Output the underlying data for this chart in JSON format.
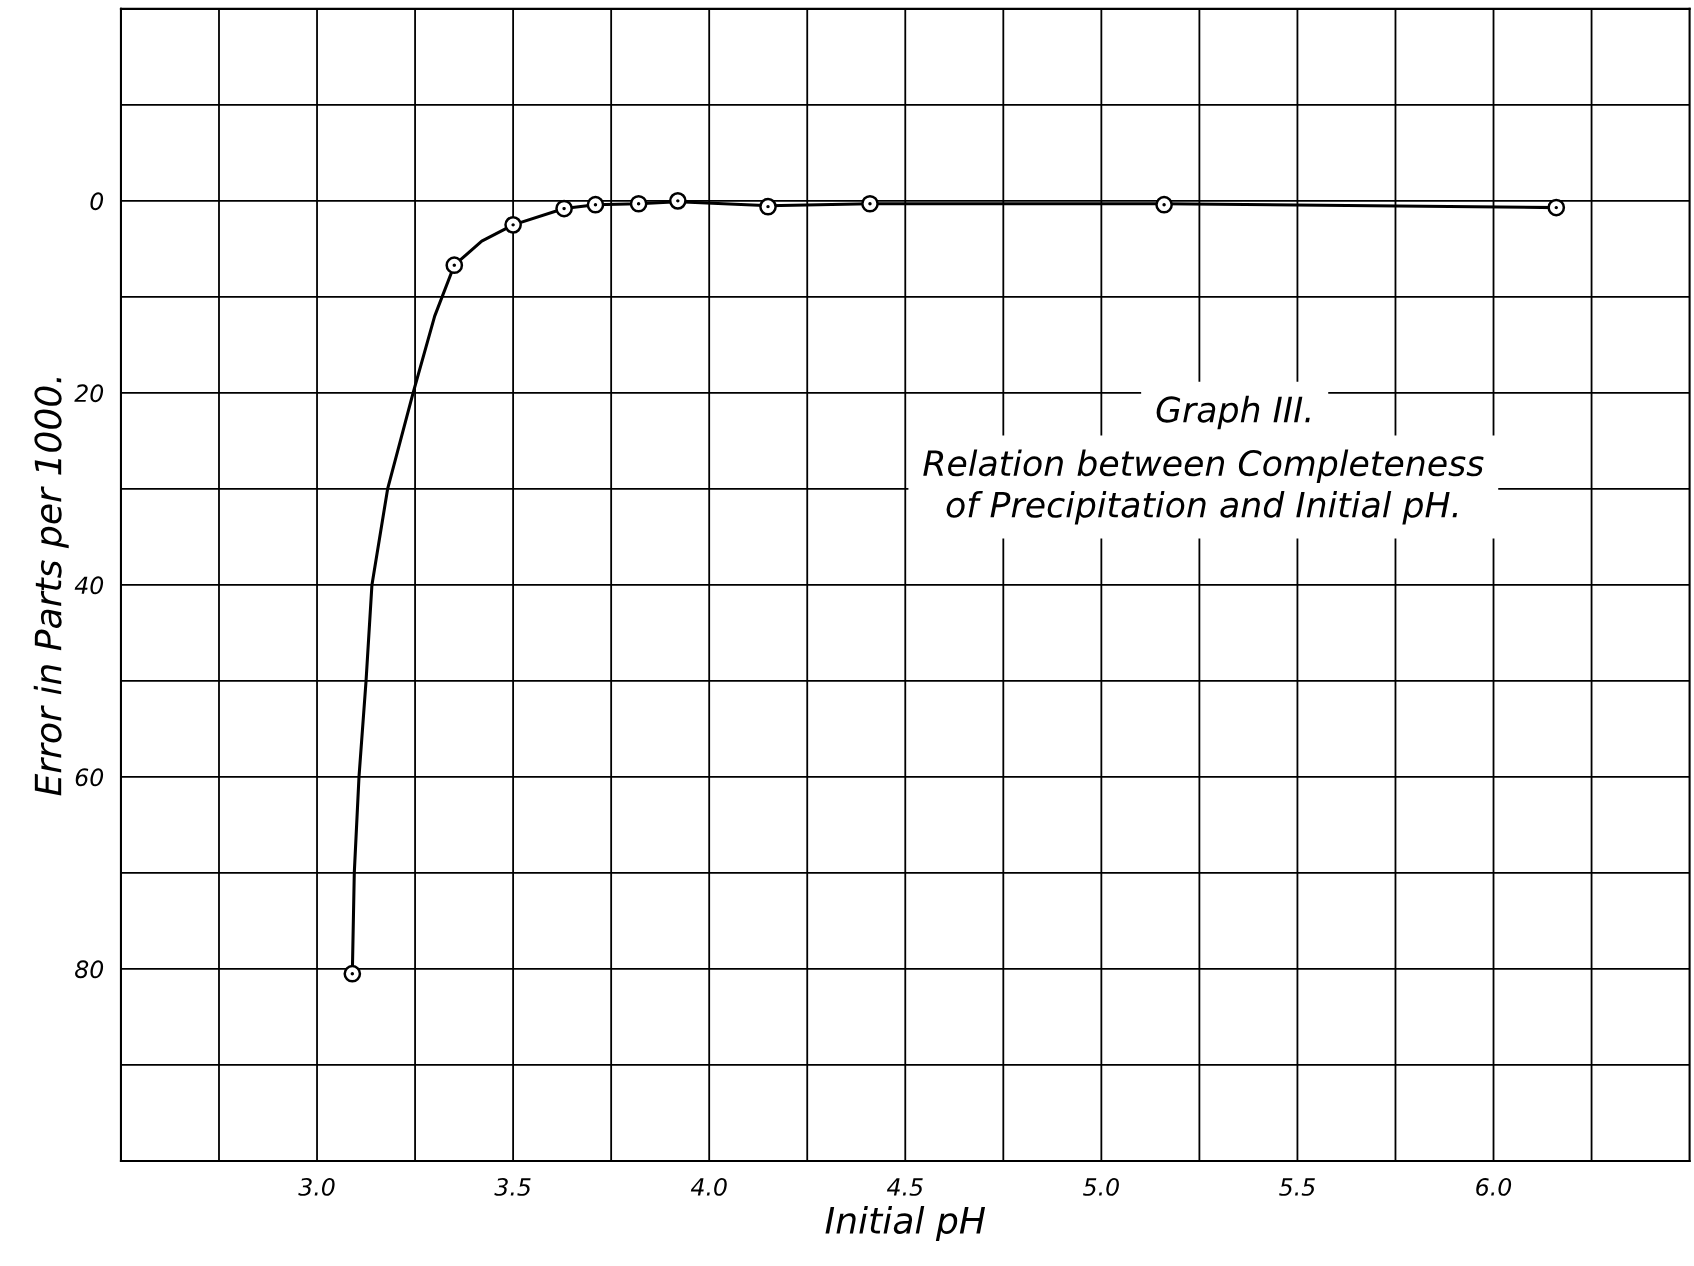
{
  "chart_data": {
    "type": "line",
    "title": "Graph III.",
    "subtitle": "Relation between Completeness\nof Precipitation and Initial pH.",
    "xlabel": "Initial pH",
    "ylabel": "Error in Parts per 1000.",
    "series": [
      {
        "color": "#000000",
        "x": [
          3.09,
          3.095,
          3.107,
          3.125,
          3.14,
          3.18,
          3.245,
          3.3,
          3.35,
          3.42,
          3.5,
          3.63,
          3.71,
          3.82,
          3.92,
          4.15,
          4.41,
          5.16,
          6.16
        ],
        "values": [
          80.5,
          70,
          60,
          50,
          40,
          30,
          20,
          12,
          6.7,
          4.2,
          2.5,
          0.8,
          0.4,
          0.3,
          0.1,
          0.5,
          0.3,
          0.3,
          0.7
        ]
      },
      {
        "type": "scatter",
        "color": "#000000",
        "marker": "circle",
        "x": [
          3.09,
          3.35,
          3.5,
          3.63,
          3.71,
          3.82,
          3.92,
          4.15,
          4.41,
          5.16,
          6.16
        ],
        "values": [
          80.5,
          6.7,
          2.5,
          0.8,
          0.4,
          0.3,
          0,
          0.6,
          0.3,
          0.4,
          0.7
        ]
      }
    ],
    "xlim": [
      2.5,
      6.5
    ],
    "ylim": [
      100,
      -20
    ],
    "xticks": [
      {
        "value": 2.75,
        "label": null
      },
      {
        "value": 3.0,
        "label": "3.0"
      },
      {
        "value": 3.25,
        "label": null
      },
      3.5,
      {
        "value": 3.75,
        "label": null
      },
      {
        "value": 4.0,
        "label": "4.0"
      },
      {
        "value": 4.25,
        "label": null
      },
      4.5,
      {
        "value": 4.75,
        "label": null
      },
      {
        "value": 5.0,
        "label": "5.0"
      },
      {
        "value": 5.25,
        "label": null
      },
      5.5,
      {
        "value": 5.75,
        "label": null
      },
      {
        "value": 6.0,
        "label": "6.0"
      },
      {
        "value": 6.25,
        "label": null
      }
    ],
    "yticks": [
      {
        "value": -10,
        "label": null
      },
      0,
      {
        "value": 10,
        "label": null
      },
      20,
      {
        "value": 30,
        "label": null
      },
      40,
      {
        "value": 50,
        "label": null
      },
      60,
      {
        "value": 70,
        "label": null
      },
      80,
      {
        "value": 90,
        "label": null
      }
    ],
    "grid": true,
    "legend": false
  }
}
